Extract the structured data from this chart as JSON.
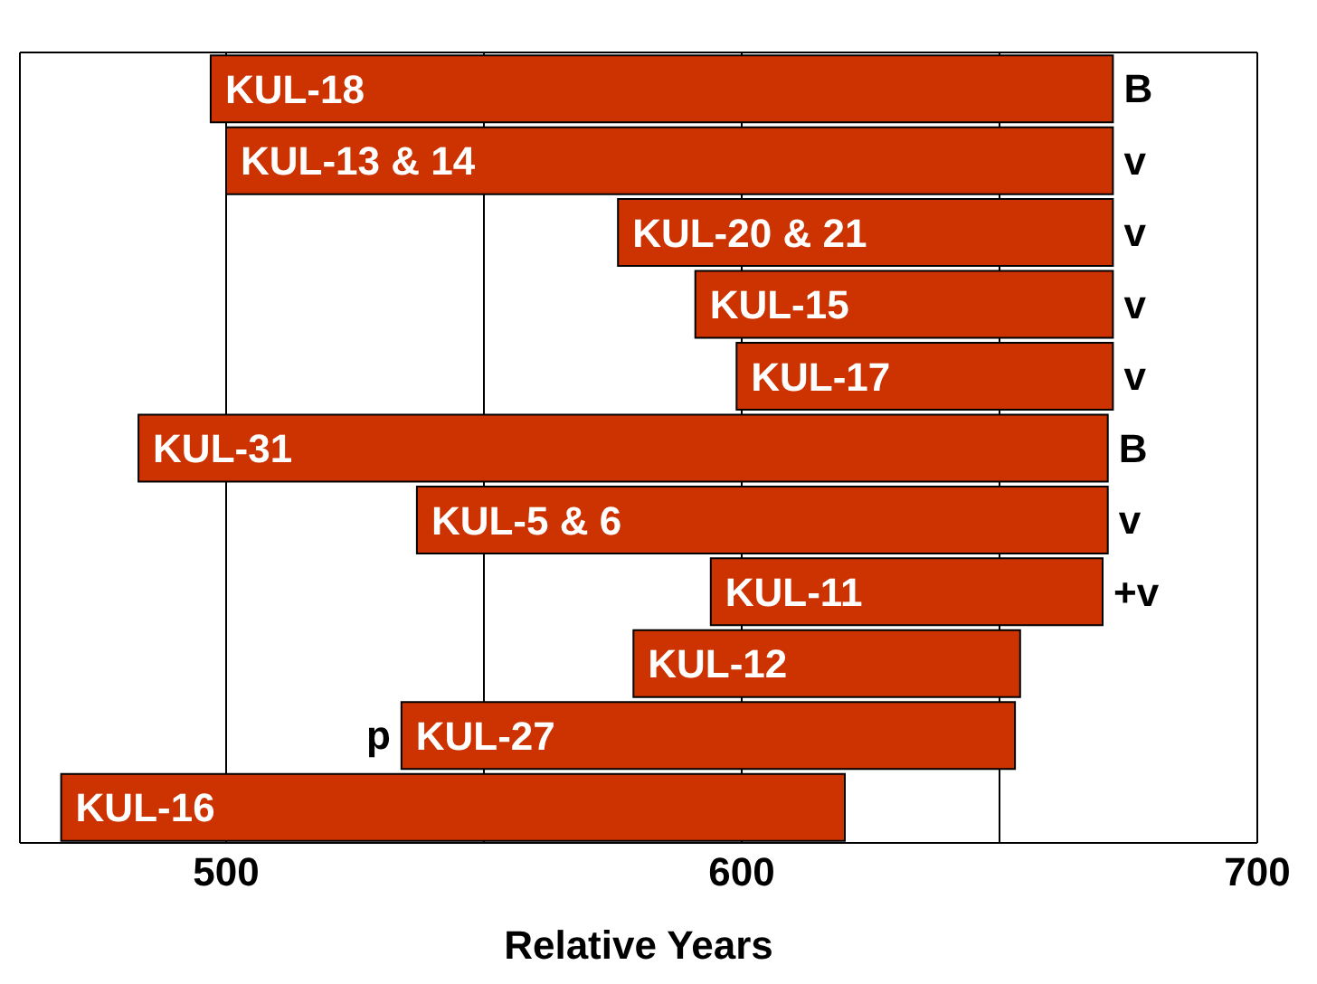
{
  "chart_data": {
    "type": "bar",
    "orientation": "horizontal",
    "xlabel": "Relative Years",
    "categories": [
      "KUL-18",
      "KUL-13 & 14",
      "KUL-20 & 21",
      "KUL-15",
      "KUL-17",
      "KUL-31",
      "KUL-5 & 6",
      "KUL-11",
      "KUL-12",
      "KUL-27",
      "KUL-16"
    ],
    "base": [
      497,
      500,
      576,
      591,
      599,
      483,
      537,
      594,
      579,
      534,
      468
    ],
    "values": [
      175,
      172,
      96,
      81,
      73,
      188,
      134,
      76,
      75,
      119,
      152
    ],
    "color": "#cc3300",
    "xlim": [
      460,
      700
    ],
    "xticks": [
      500,
      {
        "value": 550,
        "label": null
      },
      600,
      {
        "value": 650,
        "label": null
      },
      700
    ],
    "grid": "x",
    "tick_labels": "x",
    "annotations": [
      {
        "text": "B",
        "x": 672,
        "y": "KUL-18"
      },
      {
        "text": "v",
        "x": 672,
        "y": "KUL-13 & 14"
      },
      {
        "text": "v",
        "x": 672,
        "y": "KUL-20 & 21"
      },
      {
        "text": "v",
        "x": 672,
        "y": "KUL-15"
      },
      {
        "text": "v",
        "x": 672,
        "y": "KUL-17"
      },
      {
        "text": "B",
        "x": 671,
        "y": "KUL-31"
      },
      {
        "text": "v",
        "x": 671,
        "y": "KUL-5 & 6"
      },
      {
        "text": "+v",
        "x": 670,
        "y": "KUL-11"
      },
      {
        "text": "p",
        "x": 534,
        "y": "KUL-27"
      }
    ]
  }
}
